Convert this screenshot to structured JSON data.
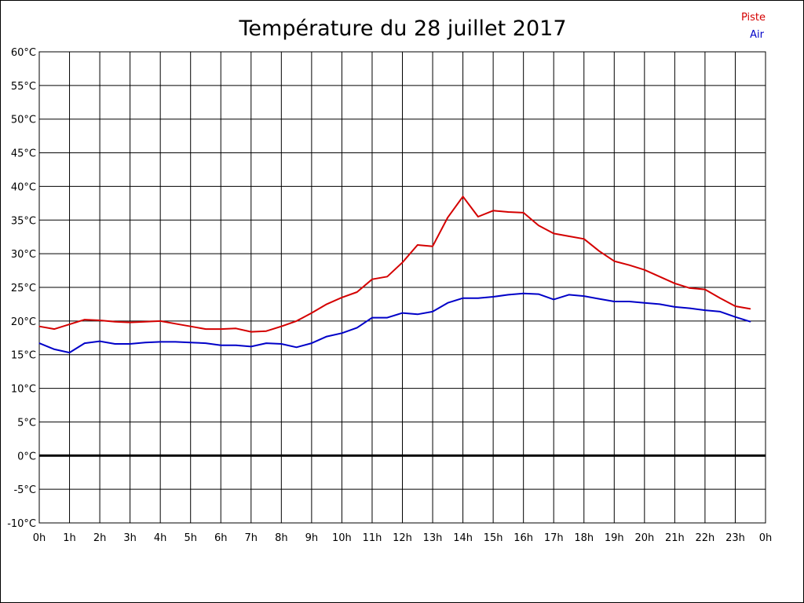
{
  "chart_data": {
    "type": "line",
    "title": "Température du 28 juillet 2017",
    "xlabel": "",
    "ylabel": "",
    "xlim": [
      0,
      24
    ],
    "ylim": [
      -10,
      60
    ],
    "grid": true,
    "legend_position": "top-right",
    "x_ticks": [
      "0h",
      "1h",
      "2h",
      "3h",
      "4h",
      "5h",
      "6h",
      "7h",
      "8h",
      "9h",
      "10h",
      "11h",
      "12h",
      "13h",
      "14h",
      "15h",
      "16h",
      "17h",
      "18h",
      "19h",
      "20h",
      "21h",
      "22h",
      "23h",
      "0h"
    ],
    "y_ticks": [
      {
        "value": 60,
        "label": "60°C"
      },
      {
        "value": 55,
        "label": "55°C"
      },
      {
        "value": 50,
        "label": "50°C"
      },
      {
        "value": 45,
        "label": "45°C"
      },
      {
        "value": 40,
        "label": "40°C"
      },
      {
        "value": 35,
        "label": "35°C"
      },
      {
        "value": 30,
        "label": "30°C"
      },
      {
        "value": 25,
        "label": "25°C"
      },
      {
        "value": 20,
        "label": "20°C"
      },
      {
        "value": 15,
        "label": "15°C"
      },
      {
        "value": 10,
        "label": "10°C"
      },
      {
        "value": 5,
        "label": "5°C"
      },
      {
        "value": 0,
        "label": "0°C"
      },
      {
        "value": -5,
        "label": "-5°C"
      },
      {
        "value": -10,
        "label": "-10°C"
      }
    ],
    "zero_line": 0,
    "series": [
      {
        "name": "Piste",
        "color": "#d40000",
        "x": [
          0,
          0.5,
          1,
          1.5,
          2,
          2.5,
          3,
          3.5,
          4,
          4.5,
          5,
          5.5,
          6,
          6.5,
          7,
          7.5,
          8,
          8.5,
          9,
          9.5,
          10,
          10.5,
          11,
          11.5,
          12,
          12.5,
          13,
          13.5,
          14,
          14.5,
          15,
          15.5,
          16,
          16.5,
          17,
          17.5,
          18,
          18.5,
          19,
          19.5,
          20,
          20.5,
          21,
          21.5,
          22,
          22.5,
          23,
          23.5
        ],
        "values": [
          19.2,
          18.8,
          19.5,
          20.2,
          20.1,
          19.9,
          19.8,
          19.9,
          20.0,
          19.6,
          19.2,
          18.8,
          18.8,
          18.9,
          18.4,
          18.5,
          19.2,
          20.0,
          21.2,
          22.5,
          23.5,
          24.3,
          26.2,
          26.6,
          28.7,
          31.3,
          31.1,
          35.4,
          38.5,
          35.5,
          36.4,
          36.2,
          36.1,
          34.2,
          33.0,
          32.6,
          32.2,
          30.4,
          28.9,
          28.3,
          27.6,
          26.6,
          25.6,
          24.9,
          24.7,
          23.4,
          22.2,
          21.8
        ]
      },
      {
        "name": "Air",
        "color": "#0000c8",
        "x": [
          0,
          0.5,
          1,
          1.5,
          2,
          2.5,
          3,
          3.5,
          4,
          4.5,
          5,
          5.5,
          6,
          6.5,
          7,
          7.5,
          8,
          8.5,
          9,
          9.5,
          10,
          10.5,
          11,
          11.5,
          12,
          12.5,
          13,
          13.5,
          14,
          14.5,
          15,
          15.5,
          16,
          16.5,
          17,
          17.5,
          18,
          18.5,
          19,
          19.5,
          20,
          20.5,
          21,
          21.5,
          22,
          22.5,
          23,
          23.5
        ],
        "values": [
          16.7,
          15.8,
          15.3,
          16.7,
          17.0,
          16.6,
          16.6,
          16.8,
          16.9,
          16.9,
          16.8,
          16.7,
          16.4,
          16.4,
          16.2,
          16.7,
          16.6,
          16.1,
          16.7,
          17.7,
          18.2,
          19.0,
          20.5,
          20.5,
          21.2,
          21.0,
          21.4,
          22.7,
          23.4,
          23.4,
          23.6,
          23.9,
          24.1,
          24.0,
          23.2,
          23.9,
          23.7,
          23.3,
          22.9,
          22.9,
          22.7,
          22.5,
          22.1,
          21.9,
          21.6,
          21.4,
          20.6,
          19.9
        ]
      }
    ]
  }
}
